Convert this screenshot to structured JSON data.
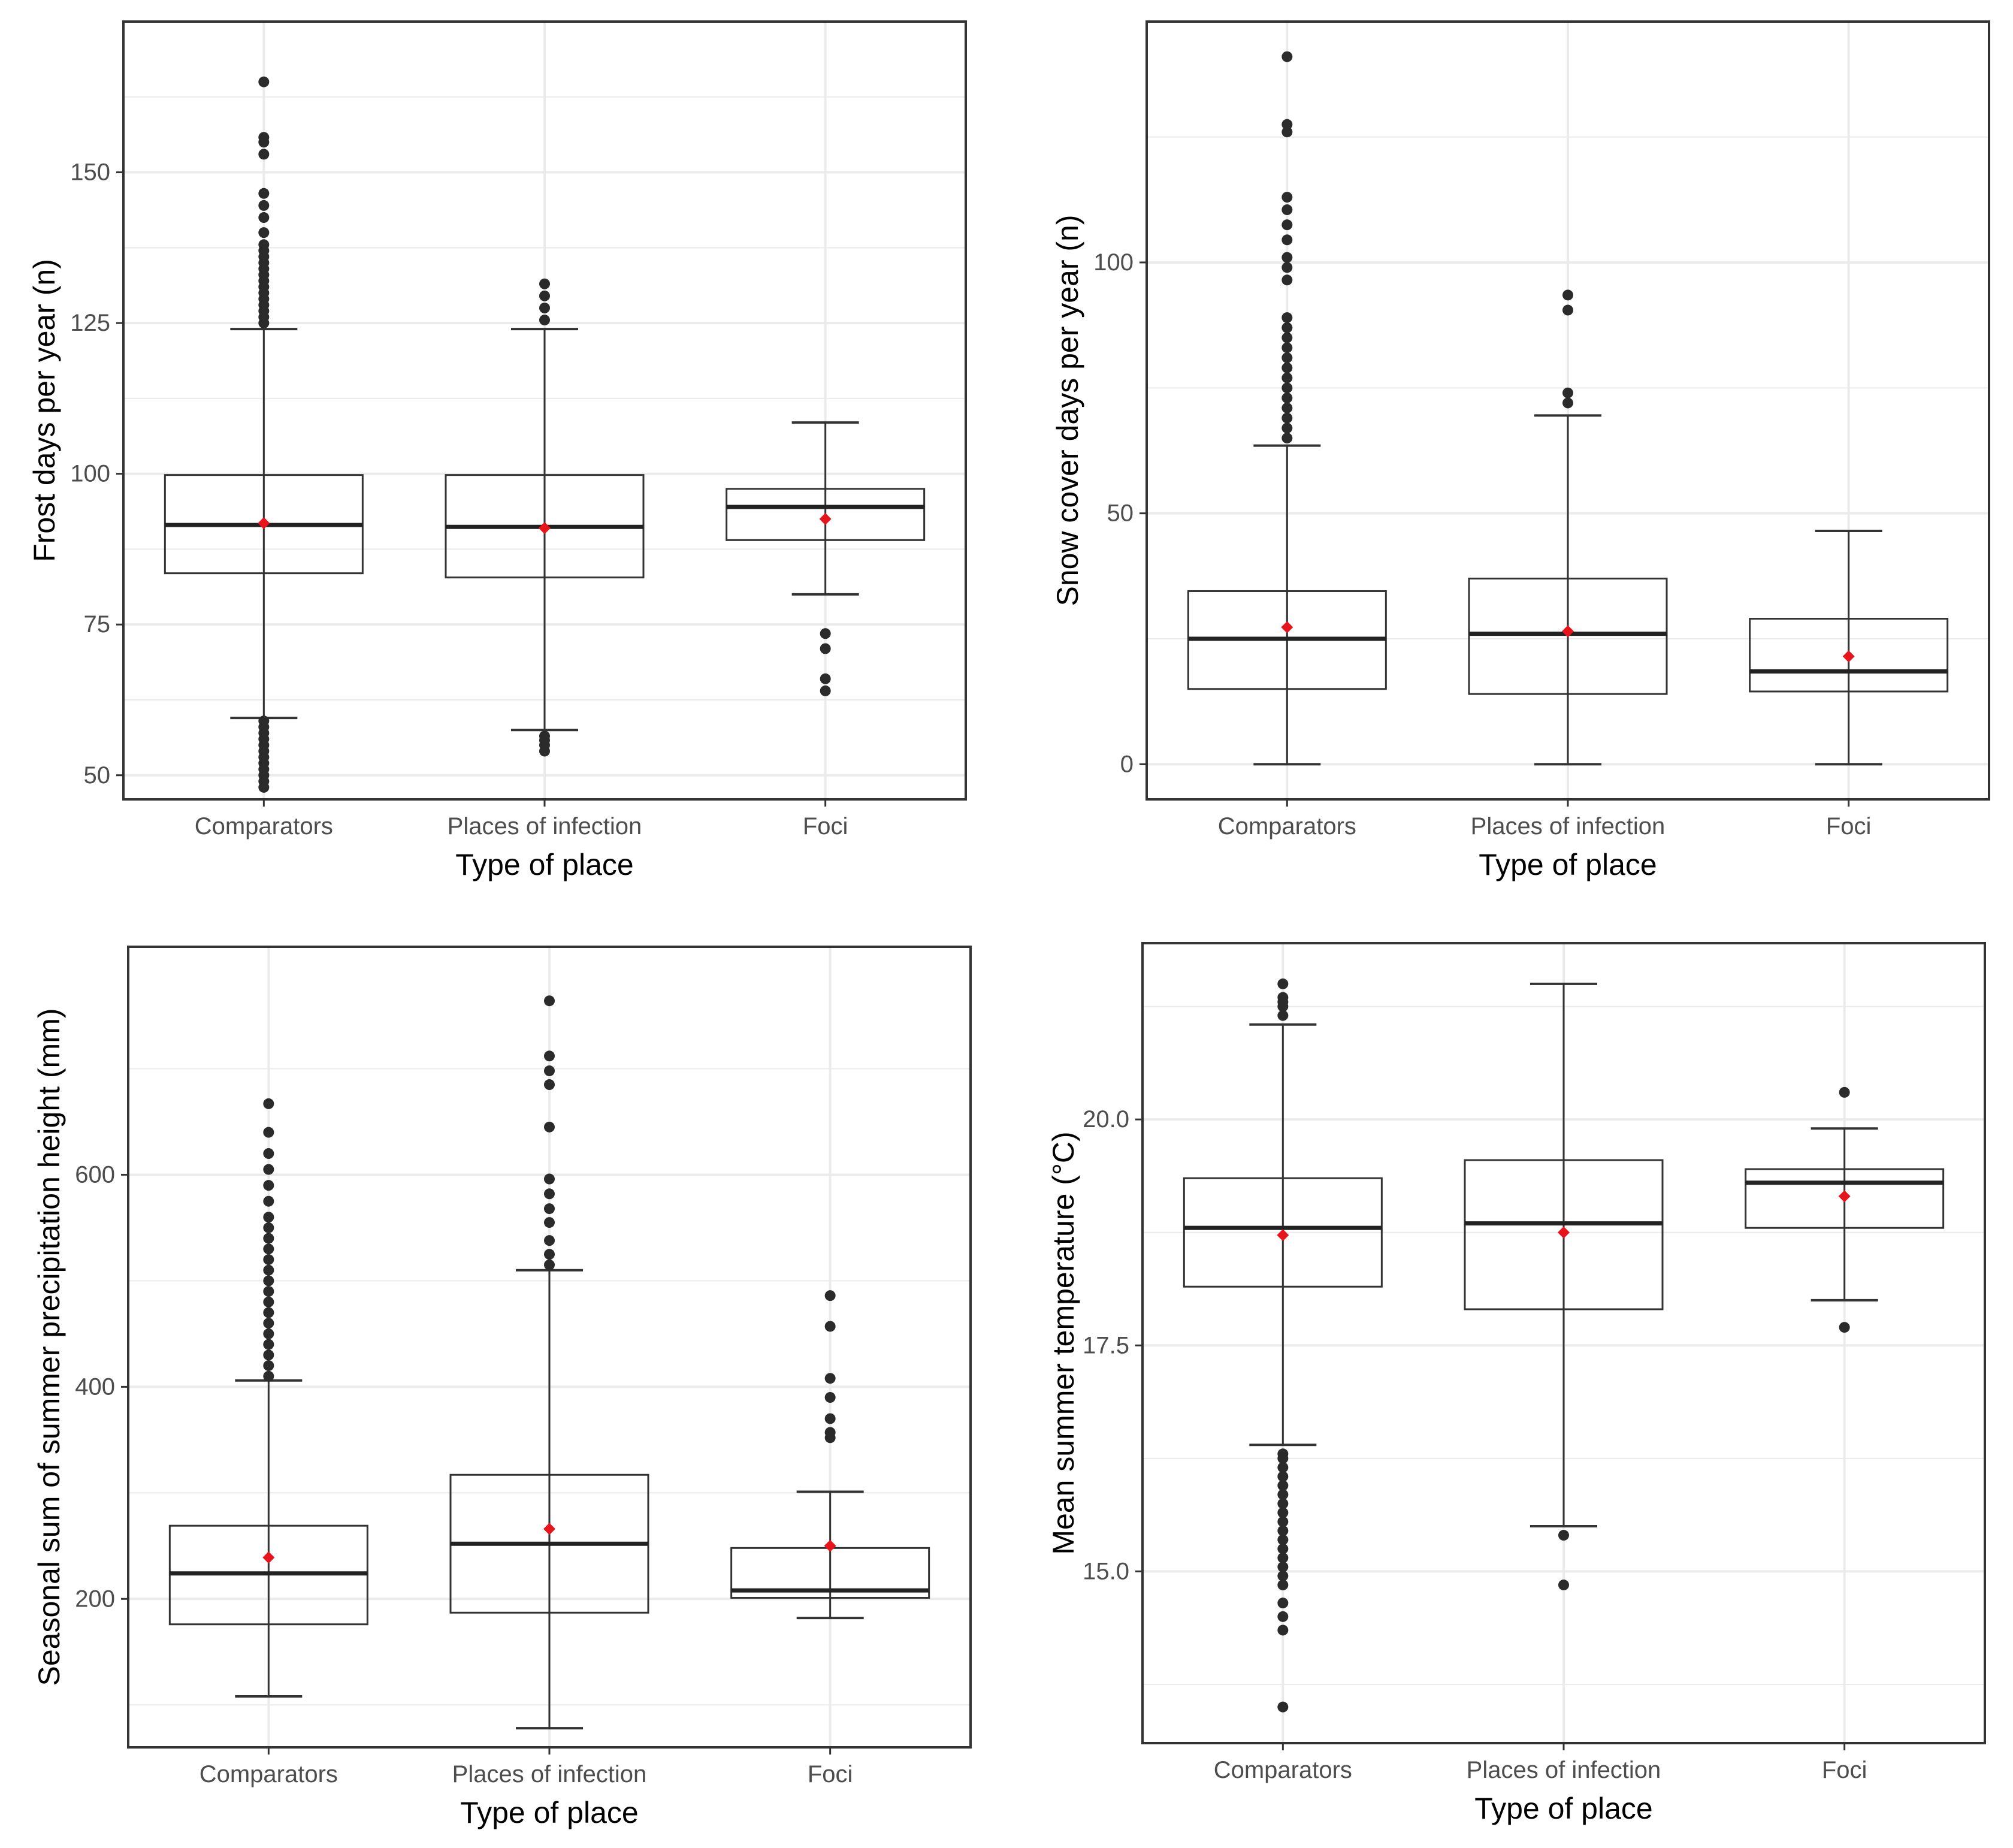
{
  "colors": {
    "grid": "#ebebeb",
    "panel_border": "#333333",
    "box_line": "#333333",
    "median_line": "#222222",
    "outlier": "#2b2b2b",
    "mean_marker": "#e8141b"
  },
  "chart_data": [
    {
      "type": "boxplot",
      "xlabel": "Type of place",
      "ylabel": "Frost days per year (n)",
      "categories": [
        "Comparators",
        "Places of infection",
        "Foci"
      ],
      "ylim": [
        46,
        175
      ],
      "yticks": [
        50,
        75,
        100,
        125,
        150
      ],
      "ytick_labels": [
        "50",
        "75",
        "100",
        "125",
        "150"
      ],
      "boxes": [
        {
          "category": "Comparators",
          "whisker_low": 59.5,
          "q1": 83.5,
          "median": 91.5,
          "q3": 99.8,
          "whisker_high": 124,
          "mean": 91.8,
          "outliers": [
            48,
            49,
            50,
            51,
            52,
            53,
            54,
            55,
            56,
            57,
            58,
            59,
            125,
            126,
            127,
            128,
            129,
            130,
            131,
            132,
            133,
            134,
            135,
            136,
            137,
            138,
            140,
            142.5,
            144.5,
            146.5,
            153,
            155,
            155.8,
            165
          ]
        },
        {
          "category": "Places of infection",
          "whisker_low": 57.5,
          "q1": 82.8,
          "median": 91.2,
          "q3": 99.8,
          "whisker_high": 124,
          "mean": 91,
          "outliers": [
            54,
            55,
            55.8,
            56.5,
            125.5,
            127.5,
            129.5,
            131.5
          ]
        },
        {
          "category": "Foci",
          "whisker_low": 80,
          "q1": 89,
          "median": 94.5,
          "q3": 97.5,
          "whisker_high": 108.5,
          "mean": 92.5,
          "outliers": [
            64,
            66,
            71,
            73.5
          ]
        }
      ]
    },
    {
      "type": "boxplot",
      "xlabel": "Type of place",
      "ylabel": "Snow cover days per year (n)",
      "categories": [
        "Comparators",
        "Places of infection",
        "Foci"
      ],
      "ylim": [
        -7,
        148
      ],
      "yticks": [
        0,
        50,
        100
      ],
      "ytick_labels": [
        "0",
        "50",
        "100"
      ],
      "boxes": [
        {
          "category": "Comparators",
          "whisker_low": 0,
          "q1": 15,
          "median": 25,
          "q3": 34.5,
          "whisker_high": 63.5,
          "mean": 27.3,
          "outliers": [
            65,
            67,
            69,
            71,
            73,
            75,
            77,
            79,
            81,
            83,
            85,
            87,
            89,
            96.5,
            99,
            101,
            104.5,
            107.5,
            110.5,
            113,
            126,
            127.5,
            141
          ]
        },
        {
          "category": "Places of infection",
          "whisker_low": 0,
          "q1": 14,
          "median": 26,
          "q3": 37,
          "whisker_high": 69.5,
          "mean": 26.5,
          "outliers": [
            72,
            74,
            90.5,
            93.5
          ]
        },
        {
          "category": "Foci",
          "whisker_low": 0,
          "q1": 14.5,
          "median": 18.5,
          "q3": 29,
          "whisker_high": 46.5,
          "mean": 21.5,
          "outliers": []
        }
      ]
    },
    {
      "type": "boxplot",
      "xlabel": "Type of place",
      "ylabel": "Seasonal sum of summer precipitation height (mm)",
      "categories": [
        "Comparators",
        "Places of infection",
        "Foci"
      ],
      "ylim": [
        60,
        815
      ],
      "yticks": [
        200,
        400,
        600
      ],
      "ytick_labels": [
        "200",
        "400",
        "600"
      ],
      "boxes": [
        {
          "category": "Comparators",
          "whisker_low": 108,
          "q1": 176,
          "median": 224,
          "q3": 269,
          "whisker_high": 406,
          "mean": 239,
          "outliers": [
            410,
            420,
            430,
            440,
            450,
            460,
            470,
            480,
            490,
            500,
            510,
            520,
            530,
            540,
            550,
            560,
            575,
            590,
            605,
            620,
            640,
            667
          ]
        },
        {
          "category": "Places of infection",
          "whisker_low": 78,
          "q1": 187,
          "median": 252,
          "q3": 317,
          "whisker_high": 510,
          "mean": 266,
          "outliers": [
            515,
            525,
            538,
            555,
            568,
            582,
            596,
            645,
            685,
            698,
            712,
            764
          ]
        },
        {
          "category": "Foci",
          "whisker_low": 182,
          "q1": 201,
          "median": 208,
          "q3": 248,
          "whisker_high": 301,
          "mean": 250,
          "outliers": [
            352,
            357,
            370,
            390,
            408,
            457,
            486
          ]
        }
      ]
    },
    {
      "type": "boxplot",
      "xlabel": "Type of place",
      "ylabel": "Mean summer temperature (°C)",
      "categories": [
        "Comparators",
        "Places of infection",
        "Foci"
      ],
      "ylim": [
        13.1,
        21.95
      ],
      "yticks": [
        15.0,
        17.5,
        20.0
      ],
      "ytick_labels": [
        "15.0",
        "17.5",
        "20.0"
      ],
      "boxes": [
        {
          "category": "Comparators",
          "whisker_low": 16.4,
          "q1": 18.15,
          "median": 18.8,
          "q3": 19.35,
          "whisker_high": 21.05,
          "mean": 18.72,
          "outliers": [
            13.5,
            14.35,
            14.5,
            14.65,
            14.85,
            14.95,
            15.05,
            15.15,
            15.25,
            15.35,
            15.45,
            15.55,
            15.65,
            15.75,
            15.85,
            15.95,
            16.05,
            16.15,
            16.25,
            16.3,
            21.15,
            21.25,
            21.3,
            21.35,
            21.5
          ]
        },
        {
          "category": "Places of infection",
          "whisker_low": 15.5,
          "q1": 17.9,
          "median": 18.85,
          "q3": 19.55,
          "whisker_high": 21.5,
          "mean": 18.75,
          "outliers": [
            14.85,
            15.4
          ]
        },
        {
          "category": "Foci",
          "whisker_low": 18.0,
          "q1": 18.8,
          "median": 19.3,
          "q3": 19.45,
          "whisker_high": 19.9,
          "mean": 19.15,
          "outliers": [
            17.7,
            20.3
          ]
        }
      ]
    }
  ]
}
